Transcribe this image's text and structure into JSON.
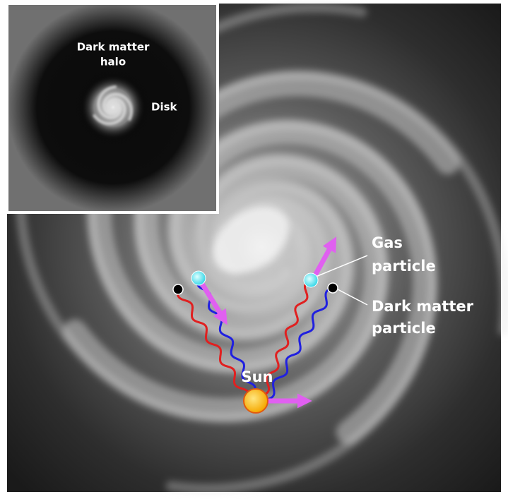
{
  "inset": {
    "halo_label": [
      "Dark matter",
      "halo"
    ],
    "disk_label": "Disk"
  },
  "labels": {
    "gas_particle": [
      "Gas",
      "particle"
    ],
    "dark_matter_particle": [
      "Dark matter",
      "particle"
    ],
    "sun": "Sun"
  }
}
